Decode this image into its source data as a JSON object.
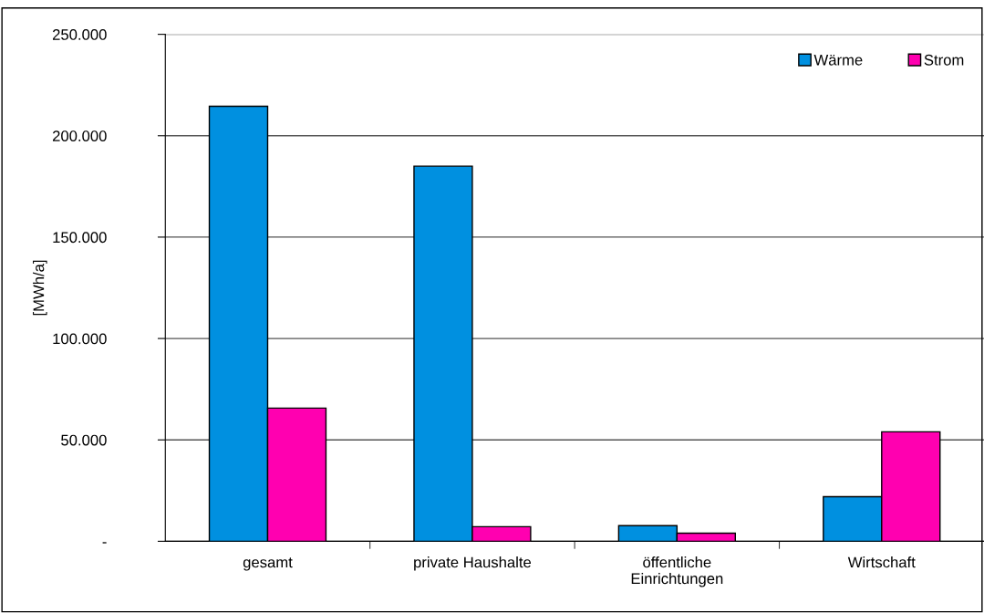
{
  "chart_data": {
    "type": "bar",
    "ylabel": "[MWh/a]",
    "categories": [
      "gesamt",
      "private Haushalte",
      "öffentliche\nEinrichtungen",
      "Wirtschaft"
    ],
    "series": [
      {
        "name": "Wärme",
        "color": "#0090e0",
        "values": [
          214500,
          185000,
          7700,
          22000
        ]
      },
      {
        "name": "Strom",
        "color": "#ff00b0",
        "values": [
          65700,
          7200,
          4000,
          54000
        ]
      }
    ],
    "ylim": [
      0,
      250000
    ],
    "yticks": [
      {
        "value": 0,
        "label": "-"
      },
      {
        "value": 50000,
        "label": "50.000"
      },
      {
        "value": 100000,
        "label": "100.000"
      },
      {
        "value": 150000,
        "label": "150.000"
      },
      {
        "value": 200000,
        "label": "200.000"
      },
      {
        "value": 250000,
        "label": "250.000"
      }
    ],
    "grid": "y",
    "legend": "top right"
  }
}
